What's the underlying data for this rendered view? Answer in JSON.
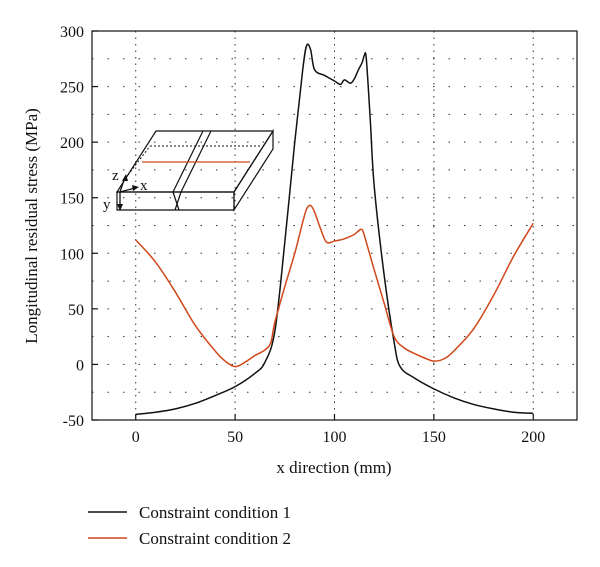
{
  "chart_data": {
    "type": "line",
    "title": "",
    "xlabel": "x direction (mm)",
    "ylabel": "Longitudinal residual stress (MPa)",
    "xlim": [
      -22,
      222
    ],
    "ylim": [
      -50,
      300
    ],
    "xticks": [
      0,
      50,
      100,
      150,
      200
    ],
    "yticks": [
      -50,
      0,
      50,
      100,
      150,
      200,
      250,
      300
    ],
    "grid": true,
    "legend_position": "bottom-left",
    "series": [
      {
        "name": "Constraint condition 1",
        "color": "#111111",
        "x": [
          0,
          10,
          20,
          30,
          40,
          50,
          60,
          65,
          70,
          75,
          80,
          84,
          86,
          88,
          90,
          95,
          100,
          103,
          105,
          108,
          110,
          112,
          114,
          115,
          116,
          118,
          120,
          125,
          130,
          133,
          140,
          150,
          160,
          170,
          180,
          190,
          200
        ],
        "y": [
          -45,
          -43,
          -40,
          -35,
          -28,
          -20,
          -8,
          2,
          30,
          110,
          200,
          265,
          287,
          283,
          265,
          260,
          255,
          252,
          256,
          253,
          257,
          265,
          272,
          278,
          275,
          220,
          160,
          80,
          20,
          -2,
          -12,
          -22,
          -30,
          -36,
          -40,
          -43,
          -44
        ]
      },
      {
        "name": "Constraint condition 2",
        "color": "#d0471a",
        "x": [
          0,
          10,
          20,
          30,
          40,
          45,
          50,
          55,
          60,
          65,
          68,
          70,
          75,
          80,
          84,
          86,
          88,
          90,
          93,
          96,
          100,
          105,
          110,
          112,
          114,
          116,
          120,
          125,
          130,
          135,
          140,
          145,
          150,
          155,
          160,
          170,
          180,
          190,
          200
        ],
        "y": [
          112,
          92,
          65,
          35,
          12,
          3,
          -2,
          2,
          8,
          13,
          20,
          38,
          70,
          100,
          128,
          140,
          143,
          137,
          122,
          110,
          111,
          113,
          117,
          120,
          121,
          110,
          85,
          55,
          25,
          15,
          10,
          6,
          3,
          5,
          12,
          32,
          62,
          97,
          127
        ]
      }
    ]
  },
  "inset": {
    "axis_z": "z",
    "axis_x": "x",
    "axis_y": "y"
  }
}
